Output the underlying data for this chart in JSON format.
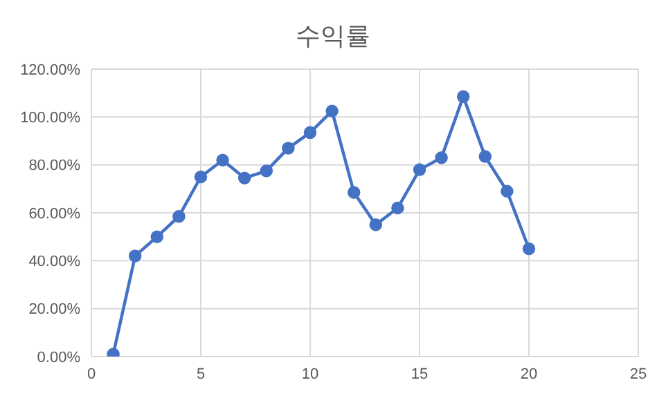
{
  "chart_data": {
    "type": "line",
    "title": "수익률",
    "x": [
      1,
      2,
      3,
      4,
      5,
      6,
      7,
      8,
      9,
      10,
      11,
      12,
      13,
      14,
      15,
      16,
      17,
      18,
      19,
      20
    ],
    "series": [
      {
        "color": "#4472c4",
        "values": [
          1,
          42,
          50,
          58.5,
          75,
          82,
          74.5,
          77.5,
          87,
          93.5,
          102.5,
          68.5,
          55,
          62,
          78,
          83,
          108.5,
          83.5,
          69,
          45
        ]
      }
    ],
    "xlim": [
      0,
      25
    ],
    "xticks": [
      0,
      5,
      10,
      15,
      20,
      25
    ],
    "ylim": [
      0,
      120
    ],
    "yticks": [
      {
        "value": 0,
        "label": "0.00%"
      },
      {
        "value": 20,
        "label": "20.00%"
      },
      {
        "value": 40,
        "label": "40.00%"
      },
      {
        "value": 60,
        "label": "60.00%"
      },
      {
        "value": 80,
        "label": "80.00%"
      },
      {
        "value": 100,
        "label": "100.00%"
      },
      {
        "value": 120,
        "label": "120.00%"
      }
    ],
    "grid": true,
    "marker": "circle",
    "line_style": "solid",
    "legend": false
  }
}
